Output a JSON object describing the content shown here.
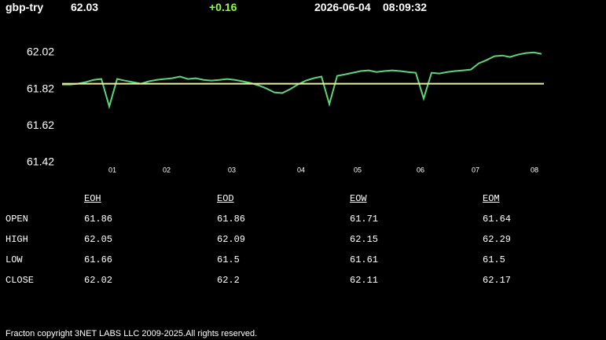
{
  "header": {
    "symbol": "gbp-try",
    "price": "62.03",
    "change": "+0.16",
    "date": "2026-06-04",
    "time": "08:09:32"
  },
  "chart_data": {
    "type": "line",
    "x": [
      0,
      1,
      2,
      3,
      4,
      5,
      6,
      7,
      8,
      9,
      10,
      11,
      12,
      13,
      14,
      15,
      16,
      17,
      18,
      19,
      20,
      21,
      22,
      23,
      24,
      25,
      26,
      27,
      28,
      29,
      30,
      31,
      32,
      33,
      34,
      35,
      36,
      37,
      38,
      39,
      40,
      41,
      42,
      43,
      44,
      45,
      46,
      47,
      48,
      49,
      50,
      51,
      52,
      53,
      54,
      55,
      56,
      57,
      58,
      59,
      60,
      61
    ],
    "series": [
      {
        "color": "#5ad67a",
        "values": [
          61.846,
          61.846,
          61.85,
          61.859,
          61.871,
          61.876,
          61.726,
          61.876,
          61.867,
          61.859,
          61.85,
          61.863,
          61.871,
          61.876,
          61.88,
          61.889,
          61.876,
          61.88,
          61.871,
          61.867,
          61.871,
          61.876,
          61.871,
          61.863,
          61.854,
          61.841,
          61.824,
          61.803,
          61.799,
          61.82,
          61.846,
          61.867,
          61.88,
          61.889,
          61.739,
          61.893,
          61.901,
          61.91,
          61.919,
          61.923,
          61.914,
          61.919,
          61.923,
          61.919,
          61.914,
          61.91,
          61.769,
          61.91,
          61.906,
          61.914,
          61.919,
          61.923,
          61.927,
          61.961,
          61.979,
          62.0,
          62.004,
          61.996,
          62.009,
          62.017,
          62.021,
          62.013
        ]
      }
    ],
    "reference_line": {
      "value": 61.85,
      "color": "#e8f0a0"
    },
    "xlim": [
      0,
      61.3
    ],
    "ylim": [
      61.42,
      62.07
    ],
    "yticks": [
      61.42,
      61.62,
      61.82,
      62.02
    ],
    "xticks": [
      {
        "value": 6.4,
        "label": "01"
      },
      {
        "value": 13.3,
        "label": "02"
      },
      {
        "value": 21.6,
        "label": "03"
      },
      {
        "value": 30.4,
        "label": "04"
      },
      {
        "value": 37.6,
        "label": "05"
      },
      {
        "value": 45.6,
        "label": "06"
      },
      {
        "value": 52.6,
        "label": "07"
      },
      {
        "value": 60.1,
        "label": "08"
      }
    ]
  },
  "table": {
    "columns": [
      "EOH",
      "EOD",
      "EOW",
      "EOM"
    ],
    "rows": [
      {
        "label": "OPEN",
        "values": [
          61.86,
          61.86,
          61.71,
          61.64
        ]
      },
      {
        "label": "HIGH",
        "values": [
          62.05,
          62.09,
          62.15,
          62.29
        ]
      },
      {
        "label": "LOW",
        "values": [
          61.66,
          61.5,
          61.61,
          61.5
        ]
      },
      {
        "label": "CLOSE",
        "values": [
          62.02,
          62.2,
          62.11,
          62.17
        ]
      }
    ]
  },
  "footer": "Fracton copyright 3NET LABS LLC 2009-2025.All rights reserved."
}
